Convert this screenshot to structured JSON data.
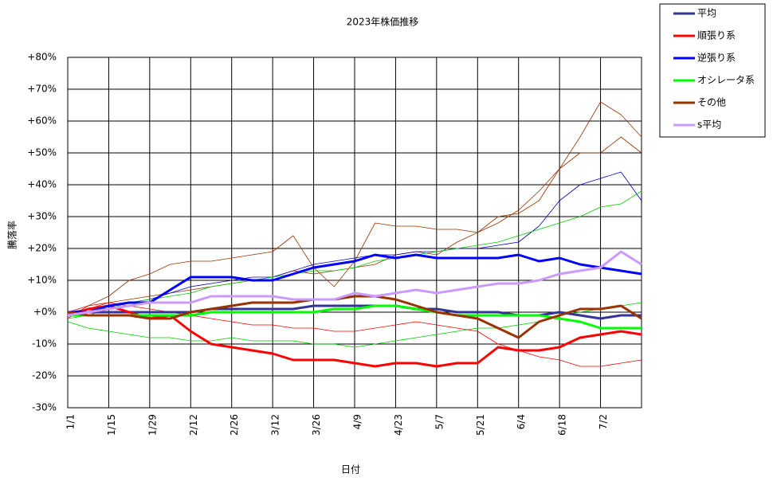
{
  "chart_data": {
    "type": "line",
    "title": "2023年株価推移",
    "x_label": "日付",
    "y_label": "騰落率",
    "x": [
      0,
      7,
      14,
      21,
      28,
      35,
      42,
      49,
      56,
      63,
      70,
      77,
      84,
      91,
      98,
      105,
      112,
      119,
      126,
      133,
      140,
      147,
      154,
      161,
      168,
      175,
      182,
      189,
      196
    ],
    "xlim": [
      0,
      196
    ],
    "xticks": [
      {
        "value": 0,
        "label": "1/1"
      },
      {
        "value": 14,
        "label": "1/15"
      },
      {
        "value": 28,
        "label": "1/29"
      },
      {
        "value": 42,
        "label": "2/12"
      },
      {
        "value": 56,
        "label": "2/26"
      },
      {
        "value": 70,
        "label": "3/12"
      },
      {
        "value": 84,
        "label": "3/26"
      },
      {
        "value": 98,
        "label": "4/9"
      },
      {
        "value": 112,
        "label": "4/23"
      },
      {
        "value": 126,
        "label": "5/7"
      },
      {
        "value": 140,
        "label": "5/21"
      },
      {
        "value": 154,
        "label": "6/4"
      },
      {
        "value": 168,
        "label": "6/18"
      },
      {
        "value": 182,
        "label": "7/2"
      }
    ],
    "ylim": [
      -30,
      80
    ],
    "yticks": [
      {
        "value": -30,
        "label": "-30%"
      },
      {
        "value": -20,
        "label": "-20%"
      },
      {
        "value": -10,
        "label": "-10%"
      },
      {
        "value": 0,
        "label": "+0%"
      },
      {
        "value": 10,
        "label": "+10%"
      },
      {
        "value": 20,
        "label": "+20%"
      },
      {
        "value": 30,
        "label": "+30%"
      },
      {
        "value": 40,
        "label": "+40%"
      },
      {
        "value": 50,
        "label": "+50%"
      },
      {
        "value": 60,
        "label": "+60%"
      },
      {
        "value": 70,
        "label": "+70%"
      },
      {
        "value": 80,
        "label": "+80%"
      }
    ],
    "grid": true,
    "legend": "outside-top-right",
    "thin_series": [
      {
        "color": "#993300",
        "values": [
          -2,
          2,
          5,
          10,
          12,
          15,
          16,
          16,
          17,
          18,
          19,
          24,
          14,
          8,
          16,
          28,
          27,
          27,
          26,
          26,
          25,
          30,
          31,
          35,
          45,
          55,
          66,
          62,
          55
        ]
      },
      {
        "color": "#993300",
        "values": [
          -1,
          1,
          3,
          4,
          5,
          6,
          7,
          8,
          9,
          10,
          11,
          13,
          12,
          13,
          14,
          15,
          18,
          19,
          18,
          22,
          25,
          28,
          32,
          38,
          45,
          50,
          50,
          55,
          50
        ]
      },
      {
        "color": "#0000cc",
        "values": [
          0,
          1,
          2,
          3,
          4,
          6,
          8,
          9,
          10,
          11,
          11,
          13,
          15,
          16,
          17,
          18,
          18,
          19,
          19,
          20,
          20,
          21,
          22,
          27,
          35,
          40,
          42,
          44,
          35
        ]
      },
      {
        "color": "#00cc00",
        "values": [
          -2,
          -1,
          1,
          3,
          4,
          5,
          6,
          8,
          9,
          10,
          11,
          12,
          13,
          13,
          14,
          16,
          17,
          18,
          19,
          20,
          21,
          22,
          24,
          26,
          28,
          30,
          33,
          34,
          38
        ]
      },
      {
        "color": "#00cc00",
        "values": [
          -3,
          -5,
          -6,
          -7,
          -8,
          -8,
          -9,
          -9,
          -8,
          -9,
          -9,
          -9,
          -10,
          -10,
          -11,
          -10,
          -9,
          -8,
          -7,
          -6,
          -5,
          -5,
          -4,
          -3,
          -1,
          0,
          1,
          2,
          3
        ]
      },
      {
        "color": "#ff0000",
        "values": [
          0,
          2,
          3,
          2,
          1,
          0,
          -1,
          -2,
          -3,
          -4,
          -4,
          -5,
          -5,
          -6,
          -6,
          -5,
          -4,
          -3,
          -4,
          -5,
          -6,
          -10,
          -12,
          -14,
          -15,
          -17,
          -17,
          -16,
          -15
        ]
      }
    ],
    "series": [
      {
        "name": "平均",
        "color": "#333399",
        "values": [
          0,
          0,
          0,
          0,
          0,
          0,
          0,
          1,
          1,
          1,
          1,
          1,
          2,
          2,
          2,
          2,
          2,
          1,
          1,
          0,
          0,
          0,
          -1,
          -1,
          0,
          -1,
          -2,
          -1,
          -1
        ]
      },
      {
        "name": "順張り系",
        "color": "#ff0000",
        "values": [
          -1,
          1,
          2,
          0,
          -2,
          -1,
          -6,
          -10,
          -11,
          -12,
          -13,
          -15,
          -15,
          -15,
          -16,
          -17,
          -16,
          -16,
          -17,
          -16,
          -16,
          -11,
          -12,
          -12,
          -11,
          -8,
          -7,
          -6,
          -7
        ]
      },
      {
        "name": "逆張り系",
        "color": "#0000ff",
        "values": [
          0,
          0,
          2,
          3,
          3,
          7,
          11,
          11,
          11,
          10,
          10,
          12,
          14,
          15,
          16,
          18,
          17,
          18,
          17,
          17,
          17,
          17,
          18,
          16,
          17,
          15,
          14,
          13,
          12
        ]
      },
      {
        "name": "オシレータ系",
        "color": "#00ff00",
        "values": [
          -1,
          -1,
          -1,
          -1,
          -1,
          -1,
          -1,
          0,
          0,
          0,
          0,
          0,
          0,
          1,
          1,
          2,
          2,
          1,
          0,
          -1,
          -1,
          -1,
          -1,
          -1,
          -2,
          -3,
          -5,
          -5,
          -5
        ]
      },
      {
        "name": "その他",
        "color": "#993300",
        "values": [
          0,
          -1,
          -1,
          -1,
          -2,
          -2,
          0,
          1,
          2,
          3,
          3,
          3,
          4,
          4,
          5,
          5,
          4,
          2,
          0,
          -1,
          -2,
          -5,
          -8,
          -3,
          -1,
          1,
          1,
          2,
          -2
        ]
      },
      {
        "name": "s平均",
        "color": "#cc99ff",
        "values": [
          -1,
          0,
          1,
          2,
          3,
          3,
          3,
          5,
          5,
          5,
          5,
          4,
          4,
          4,
          6,
          5,
          6,
          7,
          6,
          7,
          8,
          9,
          9,
          10,
          12,
          13,
          14,
          19,
          15
        ]
      }
    ]
  }
}
